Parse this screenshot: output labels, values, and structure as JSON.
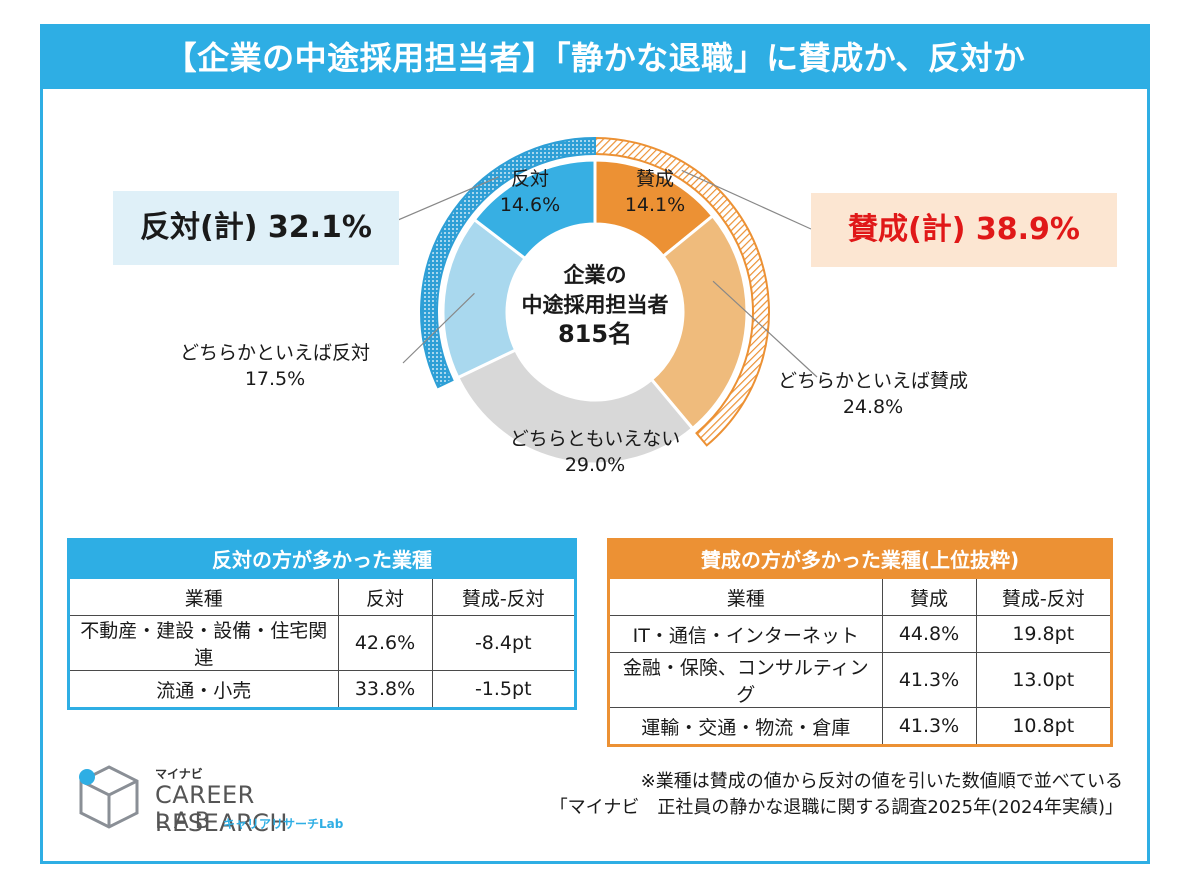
{
  "title": "【企業の中途採用担当者】「静かな退職」に賛成か、反対か",
  "chart_data": {
    "type": "pie",
    "center_label": [
      "企業の",
      "中途採用担当者",
      "815名"
    ],
    "categories": [
      "賛成",
      "どちらかといえば賛成",
      "どちらともいえない",
      "どちらかといえば反対",
      "反対"
    ],
    "values": [
      14.1,
      24.8,
      29.0,
      17.5,
      14.6
    ],
    "value_labels": [
      "14.1%",
      "24.8%",
      "29.0%",
      "17.5%",
      "14.6%"
    ],
    "colors": [
      "#ec9134",
      "#efbb7c",
      "#d8d8d8",
      "#a9d8ee",
      "#37afe3"
    ],
    "totals": {
      "against": {
        "label": "反対(計) 32.1%",
        "value": 32.1
      },
      "favor": {
        "label": "賛成(計) 38.9%",
        "value": 38.9
      }
    }
  },
  "table_against": {
    "title": "反対の方が多かった業種",
    "headers": [
      "業種",
      "反対",
      "賛成-反対"
    ],
    "rows": [
      [
        "不動産・建設・設備・住宅関連",
        "42.6%",
        "-8.4pt"
      ],
      [
        "流通・小売",
        "33.8%",
        "-1.5pt"
      ]
    ]
  },
  "table_favor": {
    "title": "賛成の方が多かった業種(上位抜粋)",
    "headers": [
      "業種",
      "賛成",
      "賛成-反対"
    ],
    "rows": [
      [
        "IT・通信・インターネット",
        "44.8%",
        "19.8pt"
      ],
      [
        "金融・保険、コンサルティング",
        "41.3%",
        "13.0pt"
      ],
      [
        "運輸・交通・物流・倉庫",
        "41.3%",
        "10.8pt"
      ]
    ]
  },
  "logo": {
    "kana": "マイナビ",
    "line1": "CAREER RESEARCH",
    "line2": "LAB",
    "sub": "キャリアリサーチLab"
  },
  "footnote": {
    "note": "※業種は賛成の値から反対の値を引いた数値順で並べている",
    "source": "「マイナビ　正社員の静かな退職に関する調査2025年(2024年実績)」"
  },
  "colors": {
    "accent_blue": "#2eaee4",
    "accent_orange": "#ec9134",
    "favor_red": "#e01818"
  }
}
